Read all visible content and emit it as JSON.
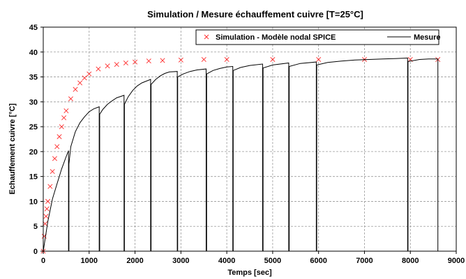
{
  "chart_data": {
    "type": "line",
    "title": "Simulation / Mesure échauffement cuivre [T=25°C]",
    "xlabel": "Temps [sec]",
    "ylabel": "Echauffement cuivre [°C]",
    "xlim": [
      0,
      9000
    ],
    "ylim": [
      0,
      45
    ],
    "x_ticks": [
      0,
      1000,
      2000,
      3000,
      4000,
      5000,
      6000,
      7000,
      8000,
      9000
    ],
    "y_ticks": [
      0,
      5,
      10,
      15,
      20,
      25,
      30,
      35,
      40,
      45
    ],
    "x_tick_labels": [
      "0",
      "1000",
      "2000",
      "3000",
      "4000",
      "5000",
      "6000",
      "7000",
      "8000",
      "9000"
    ],
    "y_tick_labels": [
      "0",
      "5",
      "10",
      "15",
      "20",
      "25",
      "30",
      "35",
      "40",
      "45"
    ],
    "grid": true,
    "legend_position": "top-right",
    "series": [
      {
        "name": "Simulation - Modèle nodal SPICE",
        "style": "markers",
        "marker": "x",
        "color": "#ff2a2a",
        "x": [
          0,
          20,
          40,
          60,
          80,
          100,
          150,
          200,
          250,
          300,
          350,
          400,
          450,
          500,
          600,
          700,
          800,
          900,
          1000,
          1200,
          1400,
          1600,
          1800,
          2000,
          2300,
          2600,
          3000,
          3500,
          4000,
          5000,
          6000,
          7000,
          8000,
          8600
        ],
        "y": [
          0,
          3,
          5.5,
          7,
          8.5,
          10,
          13,
          16,
          18.6,
          21,
          23,
          25,
          26.8,
          28.2,
          30.6,
          32.5,
          33.8,
          34.8,
          35.6,
          36.6,
          37.2,
          37.5,
          37.8,
          38,
          38.2,
          38.3,
          38.4,
          38.5,
          38.5,
          38.5,
          38.5,
          38.5,
          38.5,
          38.5
        ]
      },
      {
        "name": "Mesure",
        "style": "line",
        "color": "#000000",
        "x": [
          0,
          50,
          100,
          200,
          300,
          400,
          500,
          550,
          550,
          560,
          560,
          600,
          700,
          800,
          900,
          1000,
          1100,
          1220,
          1220,
          1230,
          1230,
          1300,
          1400,
          1500,
          1600,
          1760,
          1760,
          1770,
          1770,
          1850,
          1950,
          2050,
          2150,
          2340,
          2340,
          2350,
          2350,
          2450,
          2550,
          2650,
          2750,
          2920,
          2920,
          2930,
          2930,
          3050,
          3200,
          3350,
          3550,
          3550,
          3560,
          3560,
          3700,
          3850,
          4000,
          4130,
          4130,
          4140,
          4140,
          4300,
          4500,
          4780,
          4780,
          4790,
          4790,
          5000,
          5350,
          5350,
          5360,
          5360,
          5600,
          5950,
          5950,
          5960,
          5960,
          6200,
          6500,
          6800,
          7100,
          7400,
          7700,
          7940,
          7940,
          7950,
          7950,
          8200,
          8400,
          8600,
          8600
        ],
        "y": [
          0,
          3,
          6,
          10.5,
          13.5,
          16.5,
          19,
          20.2,
          0,
          0,
          17.5,
          21,
          24,
          25.8,
          27,
          28,
          28.6,
          29,
          0,
          0,
          27.5,
          28.5,
          29.5,
          30.2,
          30.8,
          31.3,
          0,
          0,
          29.5,
          31,
          32.3,
          33.2,
          33.8,
          34.5,
          0,
          0,
          33.5,
          34.5,
          35.2,
          35.7,
          36,
          36.1,
          0,
          0,
          35,
          35.6,
          36.1,
          36.4,
          36.6,
          0,
          0,
          35.6,
          36.3,
          36.7,
          37,
          37.1,
          0,
          0,
          36.3,
          36.9,
          37.3,
          37.6,
          0,
          0,
          36.8,
          37.4,
          37.8,
          0,
          0,
          37.1,
          37.7,
          38,
          0,
          0,
          37.4,
          37.9,
          38.2,
          38.4,
          38.5,
          38.6,
          38.7,
          38.8,
          0,
          0,
          38.1,
          38.5,
          38.6,
          38.6,
          0
        ]
      }
    ]
  }
}
